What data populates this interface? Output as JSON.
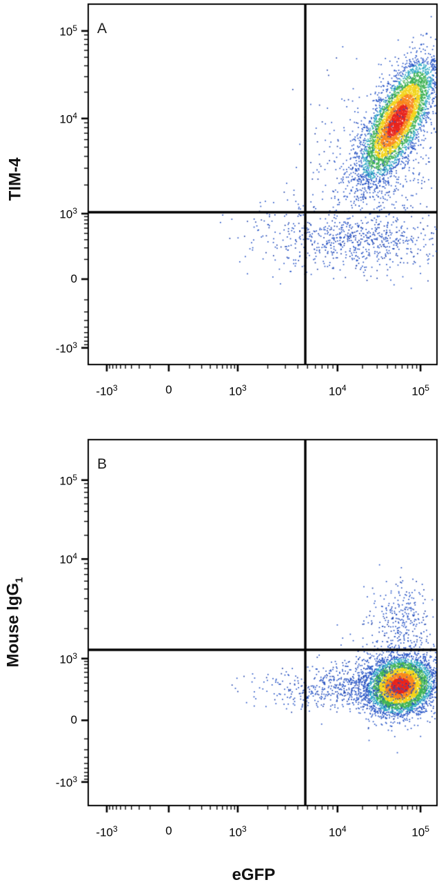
{
  "chart_data": {
    "type": "scatter",
    "subtype": "flow_cytometry_density_dot_plot",
    "scale": "biexponential",
    "xlabel": "eGFP",
    "panels": [
      {
        "label": "A",
        "ylabel": "TIM-4",
        "ylabel_sub": "",
        "x_ticks": [
          {
            "base": "-10",
            "exp": "3",
            "frac": 0.055,
            "value": -1000
          },
          {
            "base": "0",
            "exp": "",
            "frac": 0.232,
            "value": 0
          },
          {
            "base": "10",
            "exp": "3",
            "frac": 0.429,
            "value": 1000
          },
          {
            "base": "10",
            "exp": "4",
            "frac": 0.714,
            "value": 10000
          },
          {
            "base": "10",
            "exp": "5",
            "frac": 0.951,
            "value": 100000
          }
        ],
        "y_ticks": [
          {
            "base": "10",
            "exp": "5",
            "frac": 0.076,
            "value": 100000
          },
          {
            "base": "10",
            "exp": "4",
            "frac": 0.318,
            "value": 10000
          },
          {
            "base": "10",
            "exp": "3",
            "frac": 0.581,
            "value": 1000
          },
          {
            "base": "0",
            "exp": "",
            "frac": 0.762,
            "value": 0
          },
          {
            "base": "-10",
            "exp": "3",
            "frac": 0.952,
            "value": -1000
          }
        ],
        "gate": {
          "x_frac": 0.622,
          "y_frac": 0.577
        },
        "clusters": [
          {
            "name": "egfp-pos-tim4-pos-dense",
            "cx": 0.885,
            "cy": 0.325,
            "sx": 0.052,
            "sy": 0.082,
            "corr": -0.72,
            "n": 5000,
            "density": "dense"
          },
          {
            "name": "egfp-pos-tim4-neg-band",
            "cx": 0.77,
            "cy": 0.66,
            "sx": 0.115,
            "sy": 0.042,
            "corr": 0,
            "n": 650,
            "density": "sparse"
          },
          {
            "name": "mid-scatter",
            "cx": 0.83,
            "cy": 0.47,
            "sx": 0.085,
            "sy": 0.07,
            "corr": 0,
            "n": 320,
            "density": "sparse"
          },
          {
            "name": "left-strays",
            "cx": 0.55,
            "cy": 0.63,
            "sx": 0.09,
            "sy": 0.05,
            "corr": 0,
            "n": 90,
            "density": "sparse"
          },
          {
            "name": "outer-halo",
            "cx": 0.8,
            "cy": 0.35,
            "sx": 0.13,
            "sy": 0.13,
            "corr": -0.5,
            "n": 150,
            "density": "sparse"
          }
        ]
      },
      {
        "label": "B",
        "ylabel": "Mouse IgG",
        "ylabel_sub": "1",
        "x_ticks": [
          {
            "base": "-10",
            "exp": "3",
            "frac": 0.055,
            "value": -1000
          },
          {
            "base": "0",
            "exp": "",
            "frac": 0.232,
            "value": 0
          },
          {
            "base": "10",
            "exp": "3",
            "frac": 0.429,
            "value": 1000
          },
          {
            "base": "10",
            "exp": "4",
            "frac": 0.714,
            "value": 10000
          },
          {
            "base": "10",
            "exp": "5",
            "frac": 0.951,
            "value": 100000
          }
        ],
        "y_ticks": [
          {
            "base": "10",
            "exp": "5",
            "frac": 0.112,
            "value": 100000
          },
          {
            "base": "10",
            "exp": "4",
            "frac": 0.327,
            "value": 10000
          },
          {
            "base": "10",
            "exp": "3",
            "frac": 0.598,
            "value": 1000
          },
          {
            "base": "0",
            "exp": "",
            "frac": 0.766,
            "value": 0
          },
          {
            "base": "-10",
            "exp": "3",
            "frac": 0.934,
            "value": -1000
          }
        ],
        "gate": {
          "x_frac": 0.622,
          "y_frac": 0.574
        },
        "clusters": [
          {
            "name": "egfp-pos-igg1-neg-dense",
            "cx": 0.893,
            "cy": 0.672,
            "sx": 0.047,
            "sy": 0.038,
            "corr": -0.1,
            "n": 5000,
            "density": "dense"
          },
          {
            "name": "left-tail",
            "cx": 0.73,
            "cy": 0.677,
            "sx": 0.12,
            "sy": 0.033,
            "corr": 0,
            "n": 550,
            "density": "sparse"
          },
          {
            "name": "above-gate-population",
            "cx": 0.9,
            "cy": 0.495,
            "sx": 0.042,
            "sy": 0.048,
            "corr": 0,
            "n": 280,
            "density": "sparse"
          },
          {
            "name": "outer-halo",
            "cx": 0.885,
            "cy": 0.66,
            "sx": 0.085,
            "sy": 0.06,
            "corr": 0,
            "n": 300,
            "density": "sparse"
          }
        ]
      }
    ],
    "palette": {
      "red": "#e8261e",
      "orange": "#f9871c",
      "yellow": "#f2d41a",
      "green": "#3fb254",
      "cyan": "#2fa9c4",
      "blue": "#2553c6",
      "blue_dark": "#1d3fa8",
      "gate": "#000000",
      "frame": "#000000"
    }
  }
}
